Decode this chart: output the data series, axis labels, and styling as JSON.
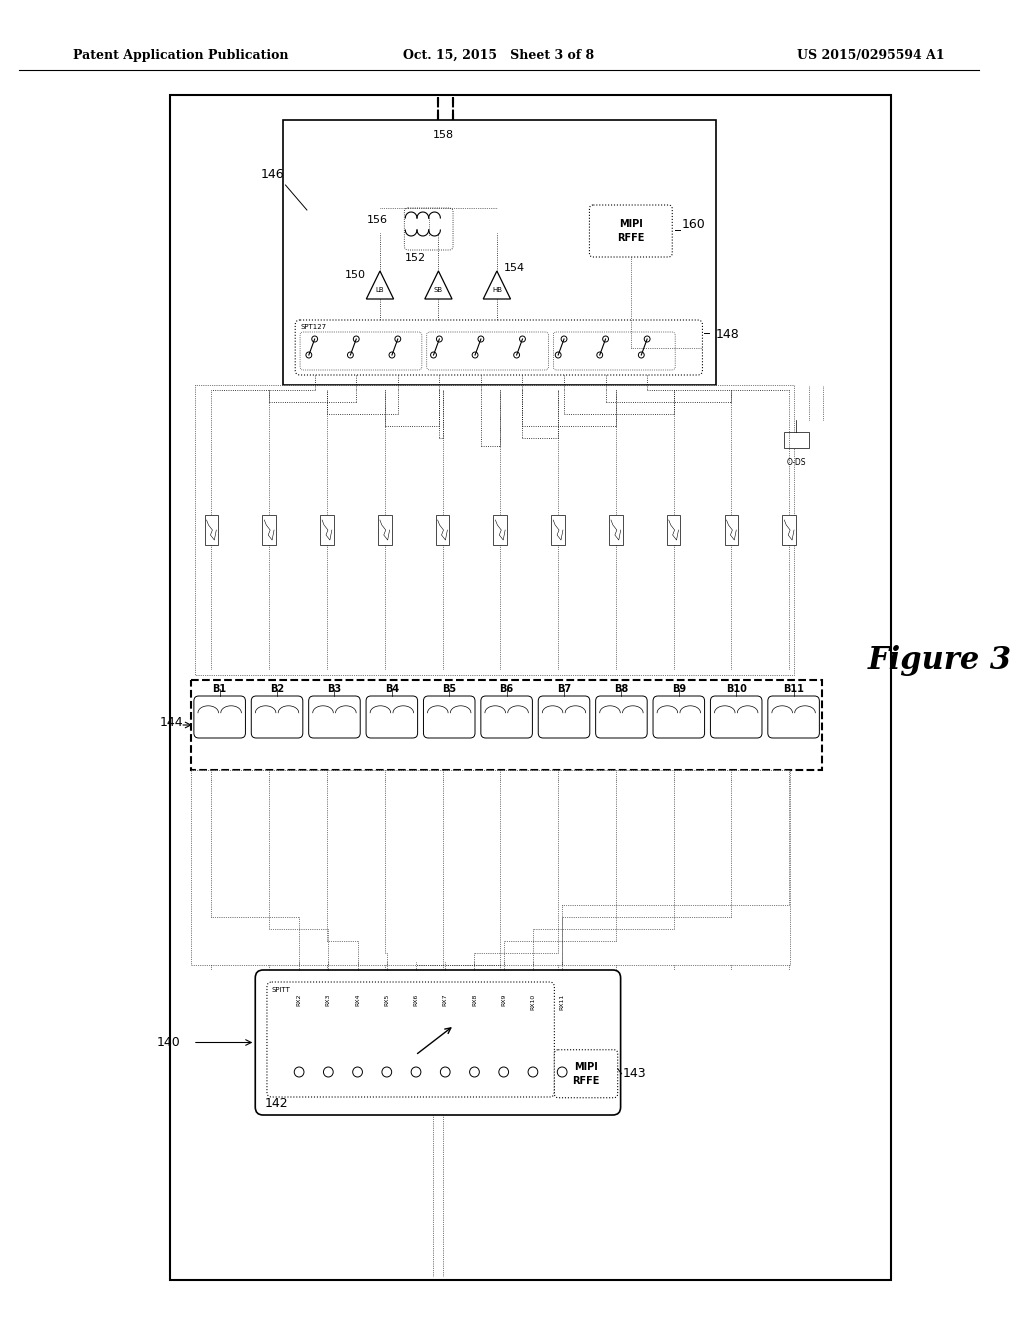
{
  "title_left": "Patent Application Publication",
  "title_center": "Oct. 15, 2015   Sheet 3 of 8",
  "title_right": "US 2015/0295594 A1",
  "figure_label": "Figure 3",
  "bg_color": "#ffffff",
  "line_color": "#000000",
  "band_labels": [
    "B1",
    "B2",
    "B3",
    "B4",
    "B5",
    "B6",
    "B7",
    "B8",
    "B9",
    "B10",
    "B11"
  ],
  "rx_labels": [
    "RX2",
    "RX3",
    "RX4",
    "RX5",
    "RX6",
    "RX7",
    "RX8",
    "RX9",
    "RX10",
    "RX11"
  ]
}
